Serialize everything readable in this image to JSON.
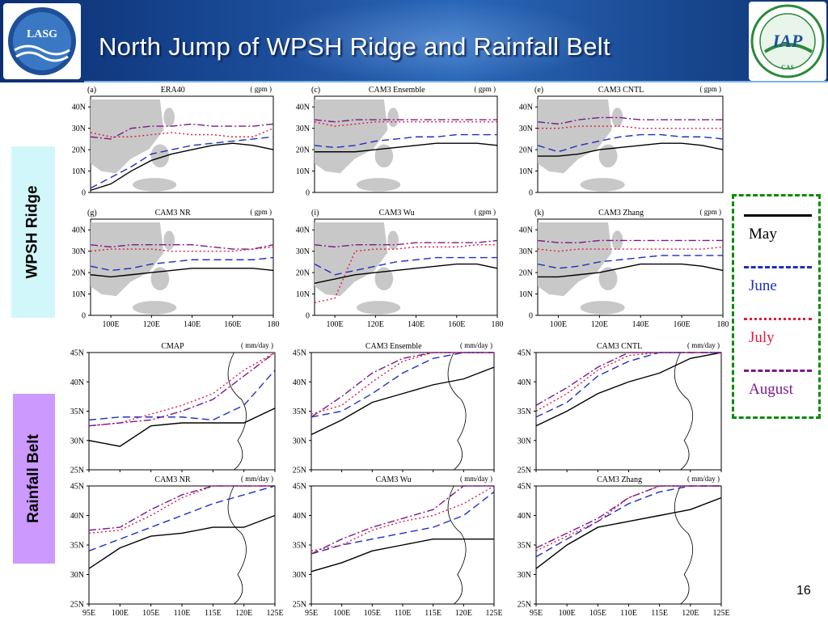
{
  "title": "North Jump of WPSH Ridge and Rainfall Belt",
  "page_number": "16",
  "logos": {
    "left_text": "LASG",
    "right_text": "IAP",
    "right_small": "CAS"
  },
  "side_labels": {
    "upper": "WPSH Ridge",
    "lower": "Rainfall Belt"
  },
  "legend": [
    {
      "label": "May",
      "color": "#000000",
      "dash": "solid"
    },
    {
      "label": "June",
      "color": "#1f2fbf",
      "dash": "longdash"
    },
    {
      "label": "July",
      "color": "#e01a3c",
      "dash": "dot"
    },
    {
      "label": "August",
      "color": "#7a1a8a",
      "dash": "dashdot"
    }
  ],
  "wpsh_units": "( gpm )",
  "rain_units": "( mm/day )",
  "wpsh_lat_ticks": [
    "0",
    "10N",
    "20N",
    "30N",
    "40N"
  ],
  "wpsh_lon_ticks": [
    "100E",
    "120E",
    "140E",
    "160E",
    "180"
  ],
  "rain_lat_ticks": [
    "25N",
    "30N",
    "35N",
    "40N",
    "45N"
  ],
  "rain_lon_ticks": [
    "95E",
    "100E",
    "105E",
    "110E",
    "115E",
    "120E",
    "125E"
  ],
  "chart_data": [
    {
      "type": "line",
      "panel": "(a)",
      "title": "ERA40",
      "group": "WPSH",
      "x": [
        90,
        100,
        110,
        120,
        130,
        140,
        150,
        160,
        170,
        180
      ],
      "xlim": [
        90,
        180
      ],
      "ylim": [
        0,
        45
      ],
      "series": [
        {
          "name": "May",
          "values": [
            1,
            4,
            10,
            15,
            18,
            20,
            22,
            23,
            22,
            20
          ]
        },
        {
          "name": "June",
          "values": [
            2,
            7,
            12,
            18,
            20,
            22,
            23,
            24,
            25,
            26
          ]
        },
        {
          "name": "July",
          "values": [
            28,
            26,
            26,
            27,
            28,
            27,
            27,
            26,
            26,
            30
          ]
        },
        {
          "name": "August",
          "values": [
            26,
            25,
            30,
            31,
            31,
            32,
            31,
            31,
            31,
            32
          ]
        }
      ]
    },
    {
      "type": "line",
      "panel": "(c)",
      "title": "CAM3 Ensemble",
      "group": "WPSH",
      "x": [
        90,
        100,
        110,
        120,
        130,
        140,
        150,
        160,
        170,
        180
      ],
      "xlim": [
        90,
        180
      ],
      "ylim": [
        0,
        45
      ],
      "series": [
        {
          "name": "May",
          "values": [
            19,
            19,
            19,
            20,
            21,
            22,
            23,
            23,
            23,
            22
          ]
        },
        {
          "name": "June",
          "values": [
            22,
            21,
            22,
            24,
            25,
            26,
            26,
            27,
            27,
            27
          ]
        },
        {
          "name": "July",
          "values": [
            33,
            31,
            32,
            33,
            33,
            33,
            33,
            33,
            33,
            33
          ]
        },
        {
          "name": "August",
          "values": [
            34,
            33,
            34,
            34,
            34,
            34,
            34,
            34,
            34,
            34
          ]
        }
      ]
    },
    {
      "type": "line",
      "panel": "(e)",
      "title": "CAM3 CNTL",
      "group": "WPSH",
      "x": [
        90,
        100,
        110,
        120,
        130,
        140,
        150,
        160,
        170,
        180
      ],
      "xlim": [
        90,
        180
      ],
      "ylim": [
        0,
        45
      ],
      "series": [
        {
          "name": "May",
          "values": [
            17,
            17,
            18,
            20,
            21,
            22,
            23,
            23,
            22,
            20
          ]
        },
        {
          "name": "June",
          "values": [
            22,
            19,
            22,
            24,
            26,
            27,
            27,
            26,
            26,
            25
          ]
        },
        {
          "name": "July",
          "values": [
            30,
            30,
            31,
            31,
            31,
            30,
            30,
            30,
            30,
            30
          ]
        },
        {
          "name": "August",
          "values": [
            33,
            32,
            34,
            35,
            35,
            34,
            34,
            34,
            34,
            34
          ]
        }
      ]
    },
    {
      "type": "line",
      "panel": "(g)",
      "title": "CAM3 NR",
      "group": "WPSH",
      "x": [
        90,
        100,
        110,
        120,
        130,
        140,
        150,
        160,
        170,
        180
      ],
      "xlim": [
        90,
        180
      ],
      "ylim": [
        0,
        45
      ],
      "series": [
        {
          "name": "May",
          "values": [
            19,
            18,
            19,
            20,
            21,
            22,
            22,
            22,
            22,
            21
          ]
        },
        {
          "name": "June",
          "values": [
            23,
            21,
            22,
            24,
            25,
            26,
            26,
            26,
            26,
            27
          ]
        },
        {
          "name": "July",
          "values": [
            30,
            31,
            31,
            31,
            30,
            30,
            30,
            30,
            31,
            32
          ]
        },
        {
          "name": "August",
          "values": [
            33,
            32,
            33,
            33,
            33,
            33,
            32,
            31,
            31,
            33
          ]
        }
      ]
    },
    {
      "type": "line",
      "panel": "(i)",
      "title": "CAM3 Wu",
      "group": "WPSH",
      "x": [
        90,
        100,
        110,
        120,
        130,
        140,
        150,
        160,
        170,
        180
      ],
      "xlim": [
        90,
        180
      ],
      "ylim": [
        0,
        45
      ],
      "series": [
        {
          "name": "May",
          "values": [
            15,
            17,
            19,
            20,
            21,
            22,
            23,
            24,
            24,
            22
          ]
        },
        {
          "name": "June",
          "values": [
            24,
            19,
            21,
            23,
            25,
            26,
            27,
            27,
            27,
            27
          ]
        },
        {
          "name": "July",
          "values": [
            6,
            8,
            30,
            31,
            31,
            32,
            32,
            32,
            33,
            33
          ]
        },
        {
          "name": "August",
          "values": [
            33,
            32,
            33,
            33,
            33,
            34,
            34,
            34,
            34,
            35
          ]
        }
      ]
    },
    {
      "type": "line",
      "panel": "(k)",
      "title": "CAM3 Zhang",
      "group": "WPSH",
      "x": [
        90,
        100,
        110,
        120,
        130,
        140,
        150,
        160,
        170,
        180
      ],
      "xlim": [
        90,
        180
      ],
      "ylim": [
        0,
        45
      ],
      "series": [
        {
          "name": "May",
          "values": [
            18,
            18,
            19,
            20,
            22,
            24,
            24,
            24,
            23,
            21
          ]
        },
        {
          "name": "June",
          "values": [
            24,
            22,
            23,
            25,
            26,
            27,
            28,
            28,
            28,
            28
          ]
        },
        {
          "name": "July",
          "values": [
            31,
            30,
            31,
            31,
            31,
            31,
            31,
            31,
            31,
            32
          ]
        },
        {
          "name": "August",
          "values": [
            35,
            34,
            34,
            35,
            35,
            35,
            35,
            35,
            35,
            35
          ]
        }
      ]
    },
    {
      "type": "line",
      "panel": "CMAP",
      "title": "CMAP",
      "group": "Rainfall",
      "x": [
        95,
        100,
        105,
        110,
        115,
        120,
        125
      ],
      "xlim": [
        95,
        125
      ],
      "ylim": [
        25,
        45
      ],
      "series": [
        {
          "name": "May",
          "values": [
            30,
            29,
            32.5,
            33,
            33,
            33,
            35.5
          ]
        },
        {
          "name": "June",
          "values": [
            33.5,
            34,
            34,
            34,
            33.5,
            36,
            42
          ]
        },
        {
          "name": "July",
          "values": [
            32.5,
            33,
            34.5,
            36,
            38,
            42,
            45
          ]
        },
        {
          "name": "August",
          "values": [
            32.5,
            33,
            33.5,
            35,
            37,
            41,
            45
          ]
        }
      ]
    },
    {
      "type": "line",
      "panel": "CAM3 Ensemble",
      "title": "CAM3 Ensemble",
      "group": "Rainfall",
      "x": [
        95,
        100,
        105,
        110,
        115,
        120,
        125
      ],
      "xlim": [
        95,
        125
      ],
      "ylim": [
        25,
        45
      ],
      "series": [
        {
          "name": "May",
          "values": [
            31,
            33.5,
            36.5,
            38,
            39.5,
            40.5,
            42.5
          ]
        },
        {
          "name": "June",
          "values": [
            34,
            35,
            38,
            41.5,
            44,
            45,
            45
          ]
        },
        {
          "name": "July",
          "values": [
            34.5,
            36,
            40,
            43.5,
            45,
            45,
            45
          ]
        },
        {
          "name": "August",
          "values": [
            34,
            37.5,
            41.5,
            44,
            45,
            45,
            45
          ]
        }
      ]
    },
    {
      "type": "line",
      "panel": "CAM3 CNTL",
      "title": "CAM3 CNTL",
      "group": "Rainfall",
      "x": [
        95,
        100,
        105,
        110,
        115,
        120,
        125
      ],
      "xlim": [
        95,
        125
      ],
      "ylim": [
        25,
        45
      ],
      "series": [
        {
          "name": "May",
          "values": [
            32.5,
            35,
            38,
            40,
            41.5,
            44,
            45
          ]
        },
        {
          "name": "June",
          "values": [
            34,
            36.5,
            41,
            43.5,
            45,
            45,
            45
          ]
        },
        {
          "name": "July",
          "values": [
            35,
            38,
            42,
            44.5,
            45,
            45,
            45
          ]
        },
        {
          "name": "August",
          "values": [
            36,
            39,
            42.5,
            45,
            45,
            45,
            45
          ]
        }
      ]
    },
    {
      "type": "line",
      "panel": "CAM3 NR",
      "title": "CAM3 NR",
      "group": "Rainfall",
      "x": [
        95,
        100,
        105,
        110,
        115,
        120,
        125
      ],
      "xlim": [
        95,
        125
      ],
      "ylim": [
        25,
        45
      ],
      "series": [
        {
          "name": "May",
          "values": [
            31,
            34.5,
            36.5,
            37,
            38,
            38,
            40
          ]
        },
        {
          "name": "June",
          "values": [
            34,
            36,
            38,
            40,
            42,
            43.5,
            45
          ]
        },
        {
          "name": "July",
          "values": [
            37,
            37.5,
            40,
            43,
            45,
            45,
            45
          ]
        },
        {
          "name": "August",
          "values": [
            37.5,
            38,
            41,
            43.5,
            45,
            45,
            45
          ]
        }
      ]
    },
    {
      "type": "line",
      "panel": "CAM3 Wu",
      "title": "CAM3 Wu",
      "group": "Rainfall",
      "x": [
        95,
        100,
        105,
        110,
        115,
        120,
        125
      ],
      "xlim": [
        95,
        125
      ],
      "ylim": [
        25,
        45
      ],
      "series": [
        {
          "name": "May",
          "values": [
            30.5,
            32,
            34,
            35,
            36,
            36,
            36
          ]
        },
        {
          "name": "June",
          "values": [
            33.5,
            35,
            36,
            37,
            38,
            40,
            44
          ]
        },
        {
          "name": "July",
          "values": [
            34,
            35,
            37.5,
            39,
            40,
            42,
            45
          ]
        },
        {
          "name": "August",
          "values": [
            33.5,
            36,
            38,
            39.5,
            41,
            45,
            45
          ]
        }
      ]
    },
    {
      "type": "line",
      "panel": "CAM3 Zhang",
      "title": "CAM3 Zhang",
      "group": "Rainfall",
      "x": [
        95,
        100,
        105,
        110,
        115,
        120,
        125
      ],
      "xlim": [
        95,
        125
      ],
      "ylim": [
        25,
        45
      ],
      "series": [
        {
          "name": "May",
          "values": [
            31,
            35,
            38,
            39,
            40,
            41,
            43
          ]
        },
        {
          "name": "June",
          "values": [
            33,
            36,
            39,
            42,
            44,
            45,
            45
          ]
        },
        {
          "name": "July",
          "values": [
            34,
            36.5,
            39,
            43,
            45,
            45,
            45
          ]
        },
        {
          "name": "August",
          "values": [
            34.5,
            37,
            39.5,
            43,
            45,
            45,
            45
          ]
        }
      ]
    }
  ]
}
